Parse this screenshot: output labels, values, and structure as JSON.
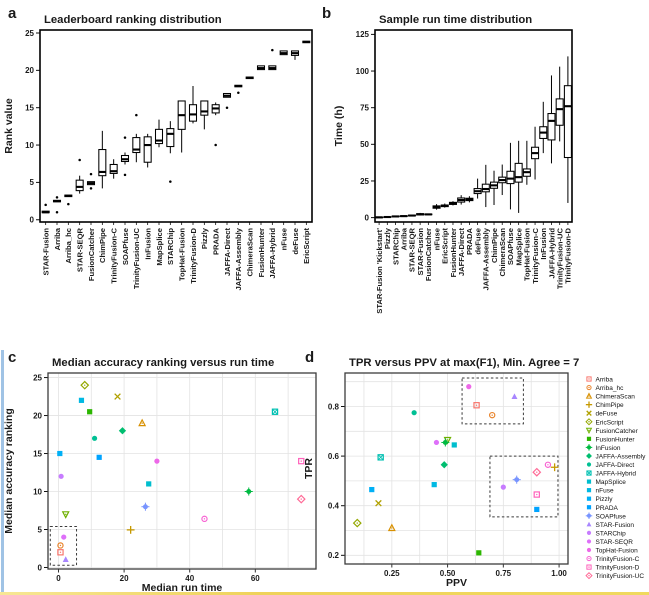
{
  "figure": {
    "background": "#ffffff",
    "bottom_strip_color": "#EFD25A",
    "left_strip_color": "#8FB9E0"
  },
  "tools": {
    "Arriba": {
      "color": "#F8766D",
      "shape": "square-open"
    },
    "Arriba_hc": {
      "color": "#E9842C",
      "shape": "circle-open"
    },
    "ChimeraScan": {
      "color": "#D89000",
      "shape": "triangle-open"
    },
    "ChimPipe": {
      "color": "#C69900",
      "shape": "plus"
    },
    "deFuse": {
      "color": "#B1A100",
      "shape": "x"
    },
    "EricScript": {
      "color": "#94A800",
      "shape": "diamond-open"
    },
    "FusionCatcher": {
      "color": "#6FB000",
      "shape": "triangle-down-open"
    },
    "FusionHunter": {
      "color": "#2CB600",
      "shape": "square"
    },
    "InFusion": {
      "color": "#00BA42",
      "shape": "circle-plus"
    },
    "JAFFA-Assembly": {
      "color": "#00BE70",
      "shape": "diamond"
    },
    "JAFFA-Direct": {
      "color": "#00C094",
      "shape": "circle"
    },
    "JAFFA-Hybrid": {
      "color": "#00C0B2",
      "shape": "square-x"
    },
    "MapSplice": {
      "color": "#00BECE",
      "shape": "square"
    },
    "nFuse": {
      "color": "#00B9E3",
      "shape": "square"
    },
    "Pizzly": {
      "color": "#00B0F6",
      "shape": "square"
    },
    "PRADA": {
      "color": "#00A3FF",
      "shape": "square"
    },
    "SOAPfuse": {
      "color": "#7894FF",
      "shape": "circle-plus"
    },
    "STAR-Fusion": {
      "color": "#A886FF",
      "shape": "triangle"
    },
    "STARChip": {
      "color": "#C77CFF",
      "shape": "circle"
    },
    "STAR-SEQR": {
      "color": "#DE70F9",
      "shape": "circle"
    },
    "TopHat-Fusion": {
      "color": "#ED68E8",
      "shape": "circle"
    },
    "TrinityFusion-C": {
      "color": "#F863D3",
      "shape": "circle-open"
    },
    "TrinityFusion-D": {
      "color": "#FF62BB",
      "shape": "square-open"
    },
    "TrinityFusion-UC": {
      "color": "#FF6B97",
      "shape": "diamond-open"
    }
  },
  "chart_data": [
    {
      "id": "a",
      "panel_label": "a",
      "type": "boxplot",
      "title": "Leaderboard ranking distribution",
      "xlabel": "",
      "ylabel": "Rank value",
      "ylim": [
        -0.3,
        25.4
      ],
      "yticks": [
        0,
        5,
        10,
        15,
        20,
        25
      ],
      "ytick_labels": [
        "0",
        "5",
        "10",
        "15",
        "20",
        "25"
      ],
      "categories": [
        "STAR-Fusion",
        "Arriba",
        "Arriba_hc",
        "STAR-SEQR",
        "FusionCatcher",
        "ChimPipe",
        "TrinityFusion-C",
        "SOAPfuse",
        "TrinityFusion-UC",
        "InFusion",
        "MapSplice",
        "STARChip",
        "TopHat-Fusion",
        "TrinityFusion-D",
        "Pizzly",
        "PRADA",
        "JAFFA-Direct",
        "JAFFA-Assembly",
        "ChimeraScan",
        "FusionHunter",
        "JAFFA-Hybrid",
        "nFuse",
        "deFuse",
        "EricScript"
      ],
      "stats": [
        {
          "q1": 0.95,
          "med": 1.0,
          "q3": 1.15,
          "lo": 0.95,
          "hi": 1.15,
          "out": [
            2
          ]
        },
        {
          "q1": 2.4,
          "med": 2.5,
          "q3": 2.6,
          "lo": 2.4,
          "hi": 2.6,
          "out": [
            1,
            3
          ]
        },
        {
          "q1": 3.1,
          "med": 3.2,
          "q3": 3.3,
          "lo": 3.1,
          "hi": 3.3,
          "out": [
            2.1
          ]
        },
        {
          "q1": 3.9,
          "med": 4.4,
          "q3": 5.3,
          "lo": 3.5,
          "hi": 5.9,
          "out": [
            8
          ]
        },
        {
          "q1": 4.7,
          "med": 4.9,
          "q3": 5.1,
          "lo": 4.7,
          "hi": 5.1,
          "out": [
            4.2,
            6.1
          ]
        },
        {
          "q1": 5.9,
          "med": 6.4,
          "q3": 9.4,
          "lo": 4.2,
          "hi": 11.9,
          "out": []
        },
        {
          "q1": 6.2,
          "med": 6.5,
          "q3": 7.4,
          "lo": 5.5,
          "hi": 8.1,
          "out": []
        },
        {
          "q1": 7.8,
          "med": 8.1,
          "q3": 8.6,
          "lo": 7.4,
          "hi": 9.0,
          "out": [
            6,
            11
          ]
        },
        {
          "q1": 9.0,
          "med": 9.4,
          "q3": 11.0,
          "lo": 7.7,
          "hi": 11.5,
          "out": [
            14
          ]
        },
        {
          "q1": 7.7,
          "med": 10.0,
          "q3": 11.1,
          "lo": 7.0,
          "hi": 11.5,
          "out": []
        },
        {
          "q1": 10.2,
          "med": 10.6,
          "q3": 12.1,
          "lo": 9.7,
          "hi": 13.4,
          "out": []
        },
        {
          "q1": 9.8,
          "med": 11.5,
          "q3": 12.2,
          "lo": 8.9,
          "hi": 13.2,
          "out": [
            5.1
          ]
        },
        {
          "q1": 12.1,
          "med": 14.0,
          "q3": 15.9,
          "lo": 9.0,
          "hi": 15.9,
          "out": []
        },
        {
          "q1": 13.2,
          "med": 14.1,
          "q3": 15.4,
          "lo": 12.9,
          "hi": 17.9,
          "out": []
        },
        {
          "q1": 14.0,
          "med": 14.5,
          "q3": 15.9,
          "lo": 12.1,
          "hi": 15.9,
          "out": []
        },
        {
          "q1": 14.3,
          "med": 14.9,
          "q3": 15.4,
          "lo": 14.0,
          "hi": 15.7,
          "out": [
            10
          ]
        },
        {
          "q1": 16.4,
          "med": 16.6,
          "q3": 16.9,
          "lo": 16.4,
          "hi": 16.9,
          "out": [
            15
          ]
        },
        {
          "q1": 17.8,
          "med": 17.9,
          "q3": 18.0,
          "lo": 17.8,
          "hi": 18.0,
          "out": [
            17
          ]
        },
        {
          "q1": 18.9,
          "med": 19.0,
          "q3": 19.1,
          "lo": 18.9,
          "hi": 19.1,
          "out": []
        },
        {
          "q1": 20.1,
          "med": 20.3,
          "q3": 20.6,
          "lo": 20.1,
          "hi": 20.6,
          "out": []
        },
        {
          "q1": 20.1,
          "med": 20.3,
          "q3": 20.6,
          "lo": 20.1,
          "hi": 20.6,
          "out": [
            22.7
          ]
        },
        {
          "q1": 22.1,
          "med": 22.3,
          "q3": 22.6,
          "lo": 22.1,
          "hi": 22.6,
          "out": []
        },
        {
          "q1": 22.0,
          "med": 22.3,
          "q3": 22.6,
          "lo": 21.4,
          "hi": 22.6,
          "out": []
        },
        {
          "q1": 23.7,
          "med": 23.8,
          "q3": 23.9,
          "lo": 23.7,
          "hi": 23.9,
          "out": []
        }
      ]
    },
    {
      "id": "b",
      "panel_label": "b",
      "type": "boxplot",
      "title": "Sample run time distribution",
      "xlabel": "",
      "ylabel": "Time (h)",
      "ylim": [
        -3,
        128
      ],
      "yticks": [
        0,
        25,
        50,
        75,
        100,
        125
      ],
      "ytick_labels": [
        "0",
        "25",
        "50",
        "75",
        "100",
        "125"
      ],
      "categories": [
        "STAR-Fusion 'Kickstart'",
        "Pizzly",
        "STARChip",
        "Arriba",
        "STAR-SEQR",
        "STAR-Fusion",
        "FusionCatcher",
        "nFuse",
        "EricScript",
        "FusionHunter",
        "JAFFA-Direct",
        "PRADA",
        "deFuse",
        "JAFFA-Assembly",
        "ChimPipe",
        "ChimeraScan",
        "SOAPfuse",
        "MapSplice",
        "TopHat-Fusion",
        "TrinityFusion-C",
        "InFusion",
        "JAFFA-Hybrid",
        "TrinityFusion-UC",
        "TrinityFusion-D"
      ],
      "stats": [
        {
          "q1": 0.1,
          "med": 0.2,
          "q3": 0.3,
          "lo": 0.1,
          "hi": 0.3,
          "out": []
        },
        {
          "q1": 0.3,
          "med": 0.4,
          "q3": 0.5,
          "lo": 0.3,
          "hi": 0.5,
          "out": []
        },
        {
          "q1": 0.6,
          "med": 0.8,
          "q3": 1.0,
          "lo": 0.6,
          "hi": 1.0,
          "out": []
        },
        {
          "q1": 0.8,
          "med": 1.0,
          "q3": 1.2,
          "lo": 0.8,
          "hi": 1.2,
          "out": []
        },
        {
          "q1": 1.2,
          "med": 1.4,
          "q3": 1.7,
          "lo": 1.2,
          "hi": 1.7,
          "out": []
        },
        {
          "q1": 1.8,
          "med": 2.2,
          "q3": 2.7,
          "lo": 1.4,
          "hi": 3.2,
          "out": []
        },
        {
          "q1": 2.0,
          "med": 2.2,
          "q3": 2.4,
          "lo": 2.0,
          "hi": 2.4,
          "out": []
        },
        {
          "q1": 6.4,
          "med": 7.2,
          "q3": 8.0,
          "lo": 5.4,
          "hi": 9.2,
          "out": []
        },
        {
          "q1": 7.5,
          "med": 8.0,
          "q3": 8.6,
          "lo": 6.8,
          "hi": 9.6,
          "out": []
        },
        {
          "q1": 9.0,
          "med": 9.6,
          "q3": 10.4,
          "lo": 8.3,
          "hi": 11.2,
          "out": []
        },
        {
          "q1": 10.6,
          "med": 12.0,
          "q3": 13.4,
          "lo": 8.9,
          "hi": 15.3,
          "out": []
        },
        {
          "q1": 11.6,
          "med": 12.4,
          "q3": 13.2,
          "lo": 10.4,
          "hi": 14.6,
          "out": []
        },
        {
          "q1": 16.4,
          "med": 18.0,
          "q3": 19.8,
          "lo": 13.0,
          "hi": 26.6,
          "out": []
        },
        {
          "q1": 17.6,
          "med": 19.5,
          "q3": 22.8,
          "lo": 7.2,
          "hi": 36.0,
          "out": []
        },
        {
          "q1": 20.0,
          "med": 22.0,
          "q3": 24.2,
          "lo": 8.6,
          "hi": 32.0,
          "out": []
        },
        {
          "q1": 23.8,
          "med": 25.6,
          "q3": 27.6,
          "lo": 15.4,
          "hi": 36.2,
          "out": []
        },
        {
          "q1": 23.2,
          "med": 26.6,
          "q3": 31.6,
          "lo": 5.6,
          "hi": 51.0,
          "out": []
        },
        {
          "q1": 24.2,
          "med": 27.6,
          "q3": 37.0,
          "lo": 3.2,
          "hi": 52.4,
          "out": []
        },
        {
          "q1": 28.2,
          "med": 31.0,
          "q3": 33.2,
          "lo": 22.4,
          "hi": 52.4,
          "out": []
        },
        {
          "q1": 40.2,
          "med": 44.0,
          "q3": 48.0,
          "lo": 26.0,
          "hi": 62.0,
          "out": []
        },
        {
          "q1": 54.0,
          "med": 58.0,
          "q3": 62.0,
          "lo": 44.0,
          "hi": 79.0,
          "out": []
        },
        {
          "q1": 53.0,
          "med": 66.0,
          "q3": 71.0,
          "lo": 37.0,
          "hi": 97.0,
          "out": []
        },
        {
          "q1": 63.0,
          "med": 74.0,
          "q3": 81.0,
          "lo": 52.0,
          "hi": 103.0,
          "out": []
        },
        {
          "q1": 41.0,
          "med": 76.0,
          "q3": 90.0,
          "lo": 10.0,
          "hi": 110.0,
          "out": []
        }
      ]
    },
    {
      "id": "c",
      "panel_label": "c",
      "type": "scatter",
      "title": "Median accuracy ranking versus run time",
      "xlabel": "Median run time",
      "ylabel": "Median accuracy ranking",
      "xlim": [
        -3.2,
        78.5
      ],
      "ylim": [
        -0.2,
        25.6
      ],
      "xticks": [
        0,
        20,
        40,
        60
      ],
      "xtick_labels": [
        "0",
        "20",
        "40",
        "60"
      ],
      "yticks": [
        0,
        5,
        10,
        15,
        20,
        25
      ],
      "ytick_labels": [
        "0",
        "5",
        "10",
        "15",
        "20",
        "25"
      ],
      "xgrid": [
        0,
        10,
        20,
        30,
        40,
        50,
        60,
        70
      ],
      "ygrid": [
        0,
        5,
        10,
        15,
        20,
        25
      ],
      "grid": true,
      "annotation_boxes": [
        [
          -2.5,
          0.3,
          5.5,
          5.4
        ]
      ],
      "points": [
        {
          "tool": "STAR-Fusion",
          "x": 2.2,
          "y": 1.05
        },
        {
          "tool": "Arriba",
          "x": 0.6,
          "y": 2.0
        },
        {
          "tool": "Arriba_hc",
          "x": 0.6,
          "y": 2.9
        },
        {
          "tool": "STAR-SEQR",
          "x": 1.6,
          "y": 4.0
        },
        {
          "tool": "ChimPipe",
          "x": 22,
          "y": 4.95
        },
        {
          "tool": "TrinityFusion-C",
          "x": 44.5,
          "y": 6.4
        },
        {
          "tool": "FusionCatcher",
          "x": 2.2,
          "y": 7.0
        },
        {
          "tool": "SOAPfuse",
          "x": 26.5,
          "y": 8.0
        },
        {
          "tool": "TrinityFusion-UC",
          "x": 74,
          "y": 9.0
        },
        {
          "tool": "InFusion",
          "x": 58,
          "y": 10.0
        },
        {
          "tool": "MapSplice",
          "x": 27.5,
          "y": 11.0
        },
        {
          "tool": "STARChip",
          "x": 0.8,
          "y": 12.0
        },
        {
          "tool": "TopHat-Fusion",
          "x": 30,
          "y": 14.0
        },
        {
          "tool": "TrinityFusion-D",
          "x": 74,
          "y": 14.0
        },
        {
          "tool": "PRADA",
          "x": 12.4,
          "y": 14.5
        },
        {
          "tool": "Pizzly",
          "x": 0.4,
          "y": 15.0
        },
        {
          "tool": "JAFFA-Direct",
          "x": 11,
          "y": 17.0
        },
        {
          "tool": "JAFFA-Assembly",
          "x": 19.5,
          "y": 18.0
        },
        {
          "tool": "ChimeraScan",
          "x": 25.5,
          "y": 19.0
        },
        {
          "tool": "FusionHunter",
          "x": 9.5,
          "y": 20.5
        },
        {
          "tool": "JAFFA-Hybrid",
          "x": 66,
          "y": 20.5
        },
        {
          "tool": "nFuse",
          "x": 7,
          "y": 22.0
        },
        {
          "tool": "deFuse",
          "x": 18,
          "y": 22.5
        },
        {
          "tool": "EricScript",
          "x": 8,
          "y": 24.0
        }
      ]
    },
    {
      "id": "d",
      "panel_label": "d",
      "type": "scatter",
      "title": "TPR versus PPV at max(F1), Min. Agree = 7",
      "xlabel": "PPV",
      "ylabel": "TPR",
      "xlim": [
        0.04,
        1.04
      ],
      "ylim": [
        0.165,
        0.935
      ],
      "xticks": [
        0.25,
        0.5,
        0.75,
        1.0
      ],
      "xtick_labels": [
        "0.25",
        "0.50",
        "0.75",
        "1.00"
      ],
      "yticks": [
        0.2,
        0.4,
        0.6,
        0.8
      ],
      "ytick_labels": [
        "0.2",
        "0.4",
        "0.6",
        "0.8"
      ],
      "xgrid": [
        0.125,
        0.25,
        0.375,
        0.5,
        0.625,
        0.75,
        0.875,
        1.0
      ],
      "ygrid": [
        0.2,
        0.3,
        0.4,
        0.5,
        0.6,
        0.7,
        0.8,
        0.9
      ],
      "grid": true,
      "annotation_boxes": [
        [
          0.565,
          0.73,
          0.84,
          0.915
        ],
        [
          0.69,
          0.355,
          0.995,
          0.6
        ]
      ],
      "legend": {
        "items": [
          "Arriba",
          "Arriba_hc",
          "ChimeraScan",
          "ChimPipe",
          "deFuse",
          "EricScript",
          "FusionCatcher",
          "FusionHunter",
          "InFusion",
          "JAFFA-Assembly",
          "JAFFA-Direct",
          "JAFFA-Hybrid",
          "MapSplice",
          "nFuse",
          "Pizzly",
          "PRADA",
          "SOAPfuse",
          "STAR-Fusion",
          "STARChip",
          "STAR-SEQR",
          "TopHat-Fusion",
          "TrinityFusion-C",
          "TrinityFusion-D",
          "TrinityFusion-UC"
        ]
      },
      "points": [
        {
          "tool": "Arriba",
          "x": 0.63,
          "y": 0.805
        },
        {
          "tool": "Arriba_hc",
          "x": 0.7,
          "y": 0.765
        },
        {
          "tool": "ChimeraScan",
          "x": 0.25,
          "y": 0.31
        },
        {
          "tool": "ChimPipe",
          "x": 0.98,
          "y": 0.555
        },
        {
          "tool": "deFuse",
          "x": 0.19,
          "y": 0.41
        },
        {
          "tool": "EricScript",
          "x": 0.095,
          "y": 0.33
        },
        {
          "tool": "FusionCatcher",
          "x": 0.5,
          "y": 0.665
        },
        {
          "tool": "FusionHunter",
          "x": 0.64,
          "y": 0.21
        },
        {
          "tool": "InFusion",
          "x": 0.49,
          "y": 0.655
        },
        {
          "tool": "JAFFA-Assembly",
          "x": 0.485,
          "y": 0.565
        },
        {
          "tool": "JAFFA-Direct",
          "x": 0.35,
          "y": 0.775
        },
        {
          "tool": "JAFFA-Hybrid",
          "x": 0.2,
          "y": 0.595
        },
        {
          "tool": "MapSplice",
          "x": 0.53,
          "y": 0.645
        },
        {
          "tool": "nFuse",
          "x": 0.44,
          "y": 0.485
        },
        {
          "tool": "Pizzly",
          "x": 0.16,
          "y": 0.465
        },
        {
          "tool": "PRADA",
          "x": 0.9,
          "y": 0.385
        },
        {
          "tool": "SOAPfuse",
          "x": 0.81,
          "y": 0.505
        },
        {
          "tool": "STAR-Fusion",
          "x": 0.8,
          "y": 0.84
        },
        {
          "tool": "STARChip",
          "x": 0.75,
          "y": 0.475
        },
        {
          "tool": "STAR-SEQR",
          "x": 0.45,
          "y": 0.655
        },
        {
          "tool": "TopHat-Fusion",
          "x": 0.595,
          "y": 0.88
        },
        {
          "tool": "TrinityFusion-C",
          "x": 0.95,
          "y": 0.565
        },
        {
          "tool": "TrinityFusion-D",
          "x": 0.9,
          "y": 0.445
        },
        {
          "tool": "TrinityFusion-UC",
          "x": 0.9,
          "y": 0.535
        }
      ]
    }
  ]
}
